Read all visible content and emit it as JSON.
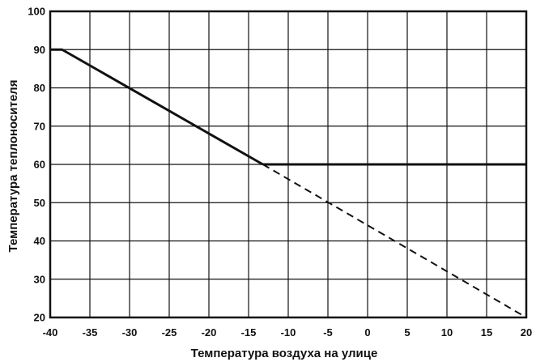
{
  "chart_data": {
    "type": "line",
    "title": "",
    "xlabel": "Температура воздуха на улице",
    "ylabel": "Температура теплоносителя",
    "xlim": [
      -40,
      20
    ],
    "ylim": [
      20,
      100
    ],
    "x_ticks": [
      -40,
      -35,
      -30,
      -25,
      -20,
      -15,
      -10,
      -5,
      0,
      5,
      10,
      15,
      20
    ],
    "y_ticks": [
      20,
      30,
      40,
      50,
      60,
      70,
      80,
      90,
      100
    ],
    "x_tick_labels": [
      "-40",
      "-35",
      "-30",
      "-25",
      "-20",
      "-15",
      "-10",
      "-5",
      "0",
      "5",
      "10",
      "15",
      "20"
    ],
    "y_tick_labels": [
      "20",
      "30",
      "40",
      "50",
      "60",
      "70",
      "80",
      "90",
      "100"
    ],
    "grid": true,
    "legend": "none",
    "series": [
      {
        "style": "solid",
        "color": "#111111",
        "x": [
          -40,
          -38.5,
          -13.2
        ],
        "y": [
          90,
          90,
          60
        ]
      },
      {
        "style": "solid",
        "color": "#111111",
        "x": [
          -13.2,
          20
        ],
        "y": [
          60,
          60
        ]
      },
      {
        "style": "dashed",
        "color": "#111111",
        "x": [
          -13.2,
          20
        ],
        "y": [
          60,
          20
        ]
      }
    ]
  }
}
